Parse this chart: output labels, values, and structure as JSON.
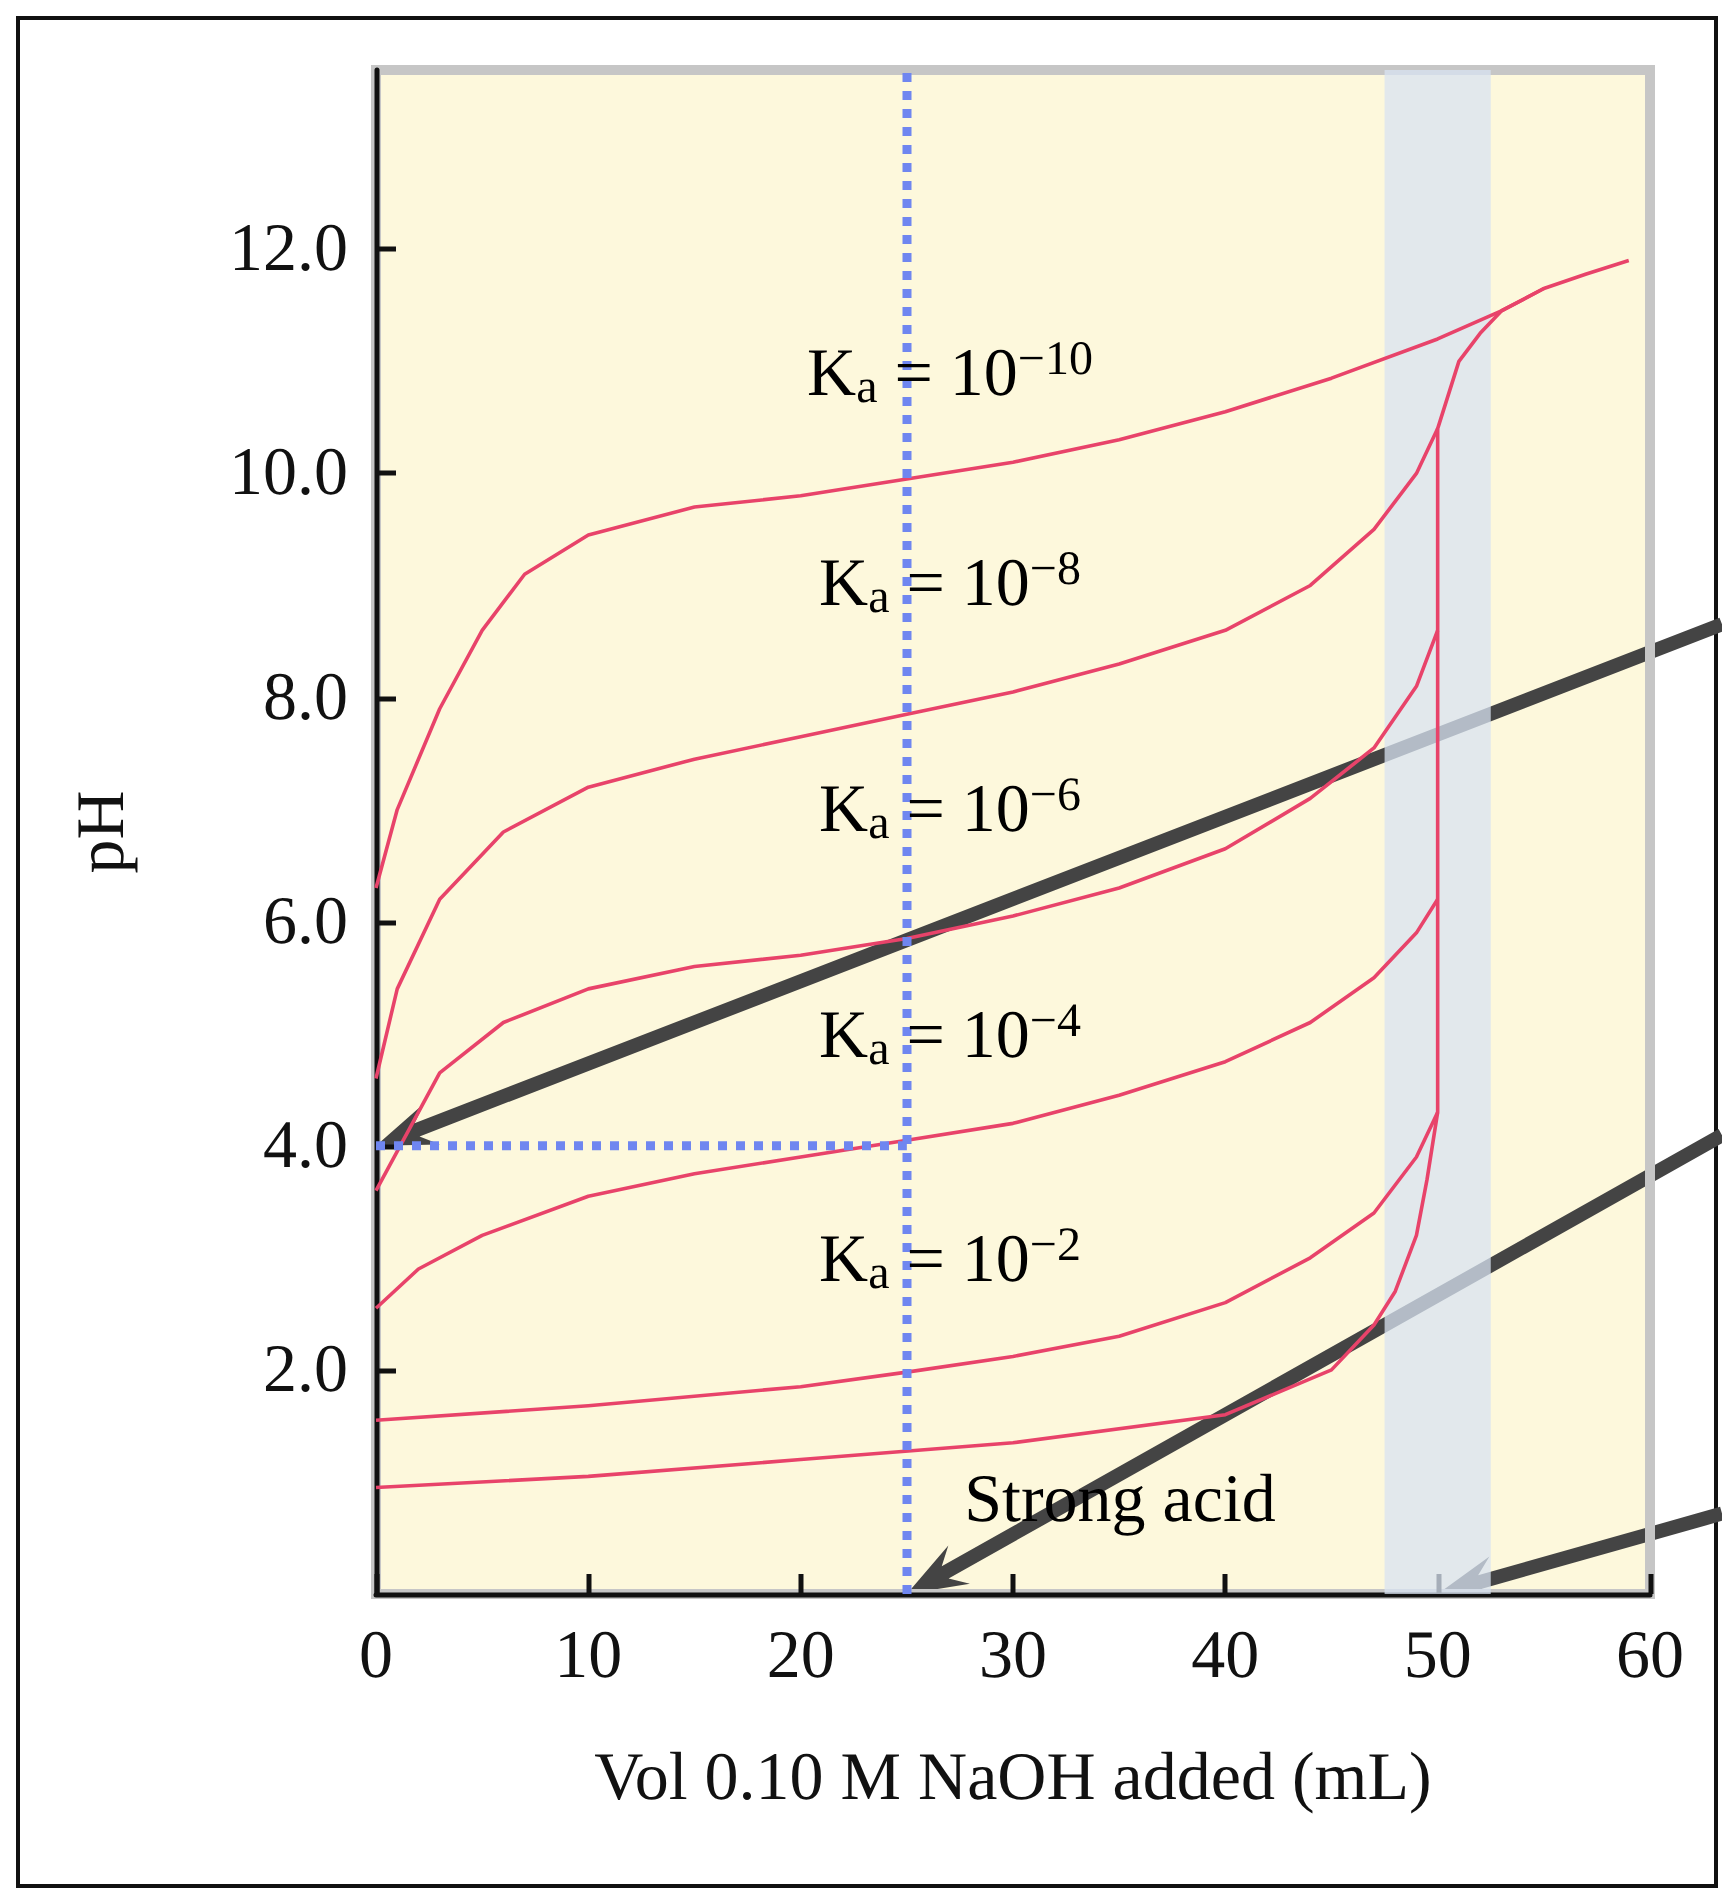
{
  "chart_data": {
    "type": "line",
    "xlabel": "Vol 0.10 M NaOH added (mL)",
    "ylabel": "pH",
    "xlim": [
      0,
      60
    ],
    "xticks": [
      0,
      10,
      20,
      30,
      40,
      50,
      60
    ],
    "ylim": [
      0,
      13.6
    ],
    "yticks": [
      {
        "value": 2,
        "label": "2.0"
      },
      {
        "value": 4,
        "label": "4.0"
      },
      {
        "value": 6,
        "label": "6.0"
      },
      {
        "value": 8,
        "label": "8.0"
      },
      {
        "value": 10,
        "label": "10.0"
      },
      {
        "value": 12,
        "label": "12.0"
      }
    ],
    "grid": false,
    "marker": "none",
    "series": [
      {
        "color": "#e8436a",
        "x": [
          0,
          10,
          20,
          30,
          40,
          45,
          47,
          48,
          49,
          49.5,
          50,
          50,
          51,
          52,
          53,
          55,
          57,
          59
        ],
        "values": [
          0.95,
          1.05,
          1.2,
          1.35,
          1.6,
          2.0,
          2.4,
          2.7,
          3.2,
          3.7,
          4.3,
          10.4,
          11.0,
          11.25,
          11.45,
          11.65,
          11.78,
          11.9
        ]
      },
      {
        "color": "#e8436a",
        "x": [
          0,
          10,
          20,
          25,
          30,
          35,
          40,
          44,
          47,
          49,
          50
        ],
        "values": [
          1.55,
          1.68,
          1.85,
          1.98,
          2.12,
          2.3,
          2.6,
          3.0,
          3.4,
          3.9,
          4.3
        ]
      },
      {
        "color": "#e8436a",
        "x": [
          0,
          2,
          5,
          10,
          15,
          20,
          25,
          30,
          35,
          40,
          44,
          47,
          49,
          50
        ],
        "values": [
          2.55,
          2.9,
          3.2,
          3.55,
          3.75,
          3.9,
          4.05,
          4.2,
          4.45,
          4.75,
          5.1,
          5.5,
          5.9,
          6.2
        ]
      },
      {
        "color": "#e8436a",
        "x": [
          0,
          3,
          6,
          10,
          15,
          20,
          25,
          30,
          35,
          40,
          44,
          47,
          49,
          50
        ],
        "values": [
          3.6,
          4.65,
          5.1,
          5.4,
          5.6,
          5.7,
          5.85,
          6.05,
          6.3,
          6.65,
          7.1,
          7.55,
          8.1,
          8.6
        ]
      },
      {
        "color": "#e8436a",
        "x": [
          0,
          1,
          3,
          6,
          10,
          15,
          20,
          25,
          30,
          35,
          40,
          44,
          47,
          49,
          50
        ],
        "values": [
          4.6,
          5.4,
          6.2,
          6.8,
          7.2,
          7.45,
          7.65,
          7.85,
          8.05,
          8.3,
          8.6,
          9.0,
          9.5,
          10.0,
          10.4
        ]
      },
      {
        "color": "#e8436a",
        "x": [
          0,
          1,
          3,
          5,
          7,
          10,
          15,
          20,
          25,
          30,
          35,
          40,
          45,
          50,
          53,
          55
        ],
        "values": [
          6.3,
          7.0,
          7.9,
          8.6,
          9.1,
          9.45,
          9.7,
          9.8,
          9.95,
          10.1,
          10.3,
          10.55,
          10.85,
          11.2,
          11.45,
          11.65
        ]
      },
      {
        "color": "#6f86f0",
        "line_style": "dotted",
        "x": [
          0,
          25
        ],
        "values": [
          4,
          4
        ]
      }
    ],
    "ref_lines": [
      {
        "axis": "x",
        "value": 25,
        "color": "#6f86f0",
        "line_style": "dotted"
      }
    ],
    "bands": [
      {
        "axis": "x",
        "from": 47.5,
        "to": 52.5,
        "color": "#d8e3f1"
      }
    ],
    "annotations": [
      "K$_{a}$ = 10$^{−10}$",
      "K$_{a}$ = 10$^{−8}$",
      "K$_{a}$ = 10$^{−6}$",
      "K$_{a}$ = 10$^{−4}$",
      "K$_{a}$ = 10$^{−2}$",
      "Strong acid"
    ]
  }
}
